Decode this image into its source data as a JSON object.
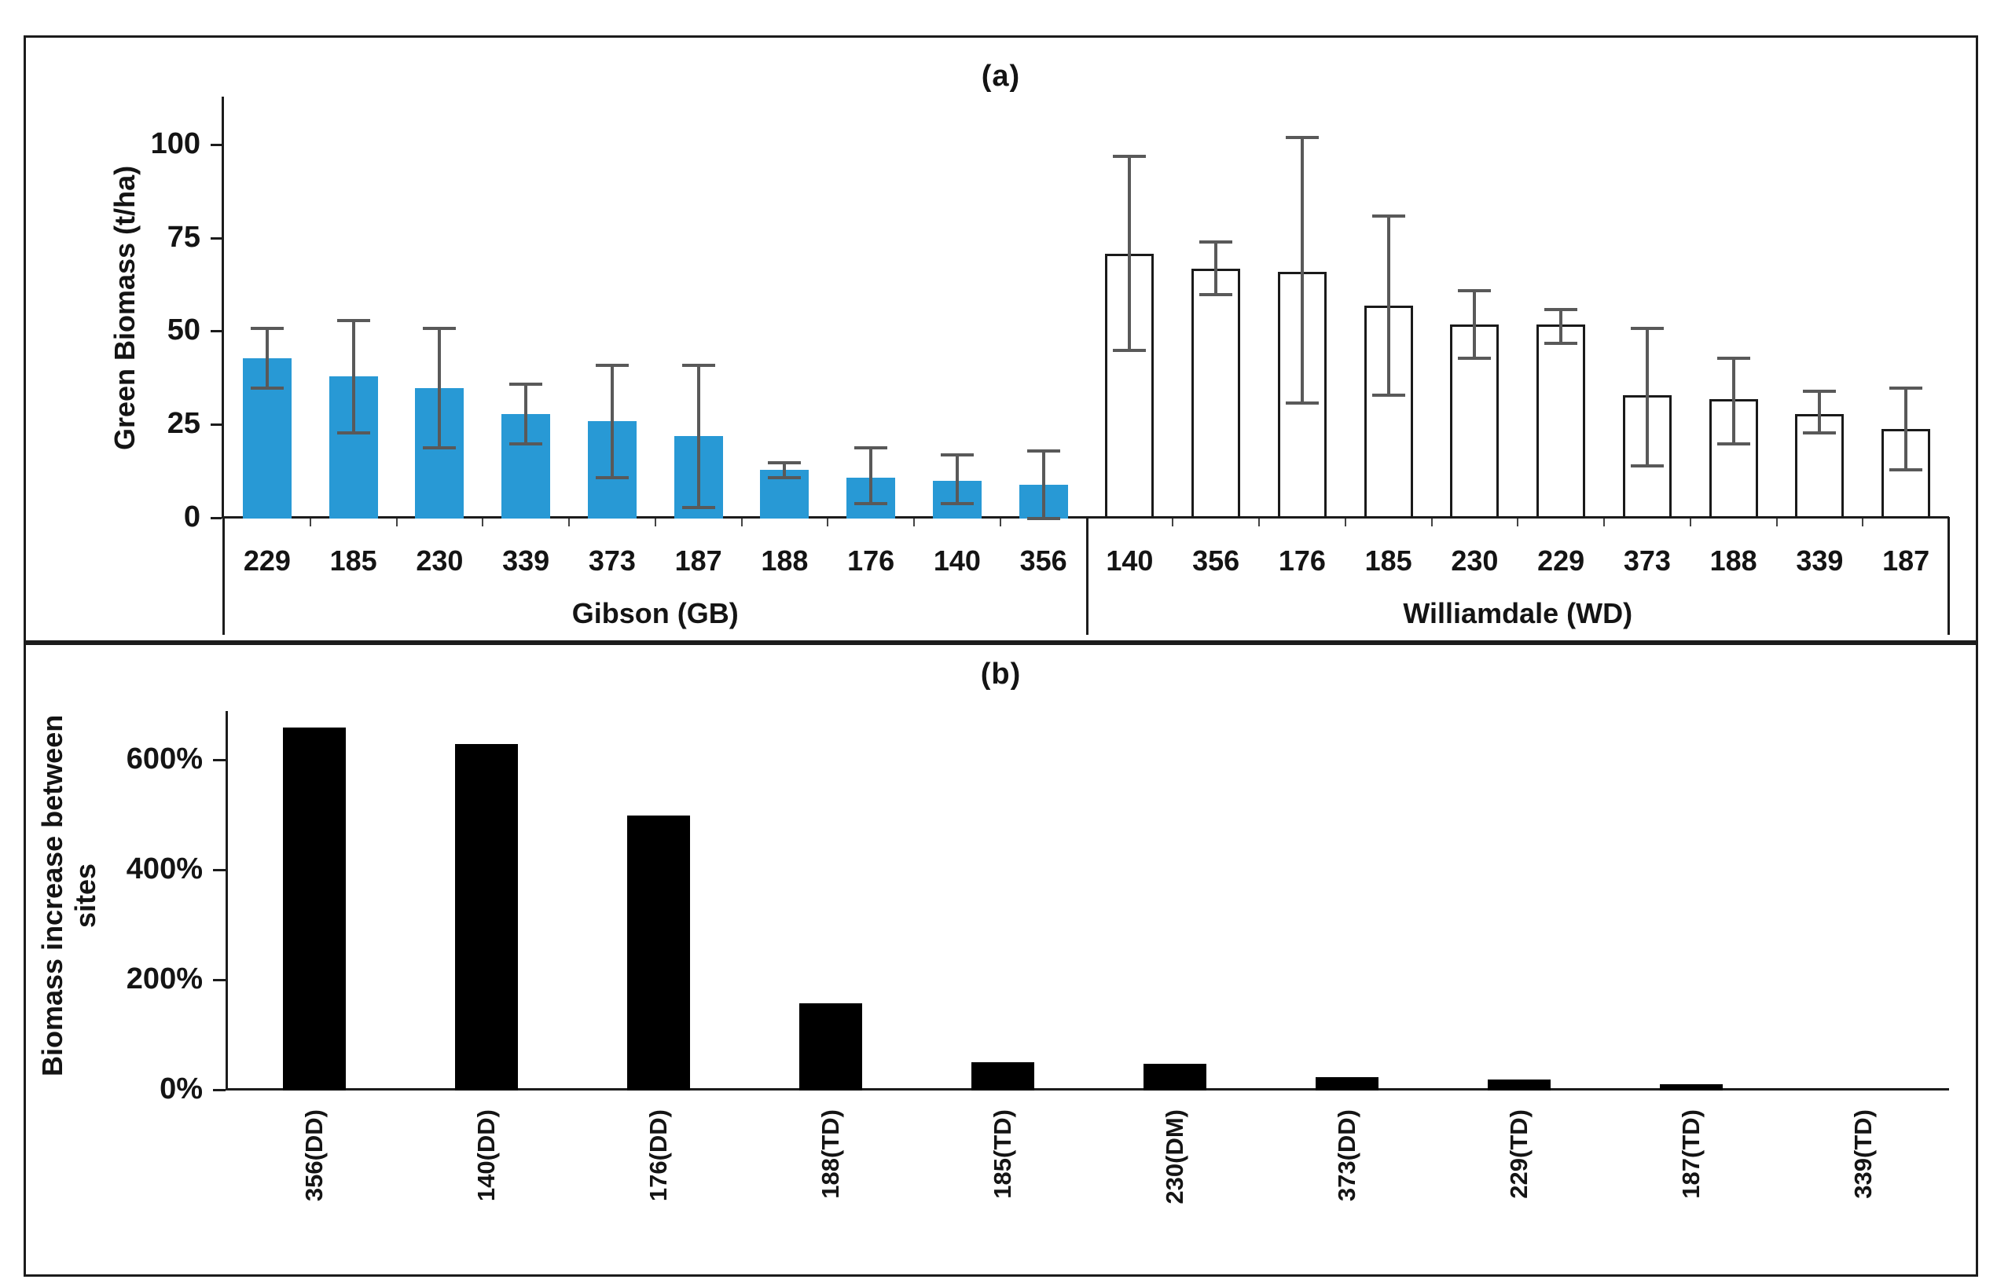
{
  "colors": {
    "gibson_bar": "#2899d5",
    "williamdale_bar_fill": "#ffffff",
    "bar_outline": "#1a1a1a",
    "error_bar": "#595959",
    "panel_b_bar": "#000000",
    "axis": "#1c1c1c"
  },
  "chart_data": [
    {
      "type": "bar",
      "title": "(a)",
      "ylabel": "Green Biomass (t/ha)",
      "ylim": [
        0,
        113
      ],
      "grid": false,
      "yticks": [
        {
          "value": 0,
          "label": "0"
        },
        {
          "value": 25,
          "label": "25"
        },
        {
          "value": 50,
          "label": "50"
        },
        {
          "value": 75,
          "label": "75"
        },
        {
          "value": 100,
          "label": "100"
        }
      ],
      "groups": [
        {
          "label": "Gibson (GB)",
          "bar_style": "blue",
          "categories": [
            "229",
            "185",
            "230",
            "339",
            "373",
            "187",
            "188",
            "176",
            "140",
            "356"
          ],
          "values": [
            43,
            38,
            35,
            28,
            26,
            22,
            13,
            11,
            10,
            9
          ],
          "error_low": [
            35,
            23,
            19,
            20,
            11,
            3,
            11,
            4,
            4,
            0
          ],
          "error_high": [
            51,
            53,
            51,
            36,
            41,
            41,
            15,
            19,
            17,
            18
          ]
        },
        {
          "label": "Williamdale (WD)",
          "bar_style": "white",
          "categories": [
            "140",
            "356",
            "176",
            "185",
            "230",
            "229",
            "373",
            "188",
            "339",
            "187"
          ],
          "values": [
            71,
            67,
            66,
            57,
            52,
            52,
            33,
            32,
            28,
            24
          ],
          "error_low": [
            45,
            60,
            31,
            33,
            43,
            47,
            14,
            20,
            23,
            13
          ],
          "error_high": [
            97,
            74,
            102,
            81,
            61,
            56,
            51,
            43,
            34,
            35
          ]
        }
      ]
    },
    {
      "type": "bar",
      "title": "(b)",
      "ylabel": "Biomass increase between sites",
      "ylim": [
        0,
        690
      ],
      "grid": false,
      "yticks": [
        {
          "value": 0,
          "label": "0%"
        },
        {
          "value": 200,
          "label": "200%"
        },
        {
          "value": 400,
          "label": "400%"
        },
        {
          "value": 600,
          "label": "600%"
        }
      ],
      "categories": [
        "356(DD)",
        "140(DD)",
        "176(DD)",
        "188(TD)",
        "185(TD)",
        "230(DM)",
        "373(DD)",
        "229(TD)",
        "187(TD)",
        "339(TD)"
      ],
      "values": [
        660,
        630,
        500,
        158,
        52,
        48,
        24,
        20,
        12,
        0
      ]
    }
  ]
}
